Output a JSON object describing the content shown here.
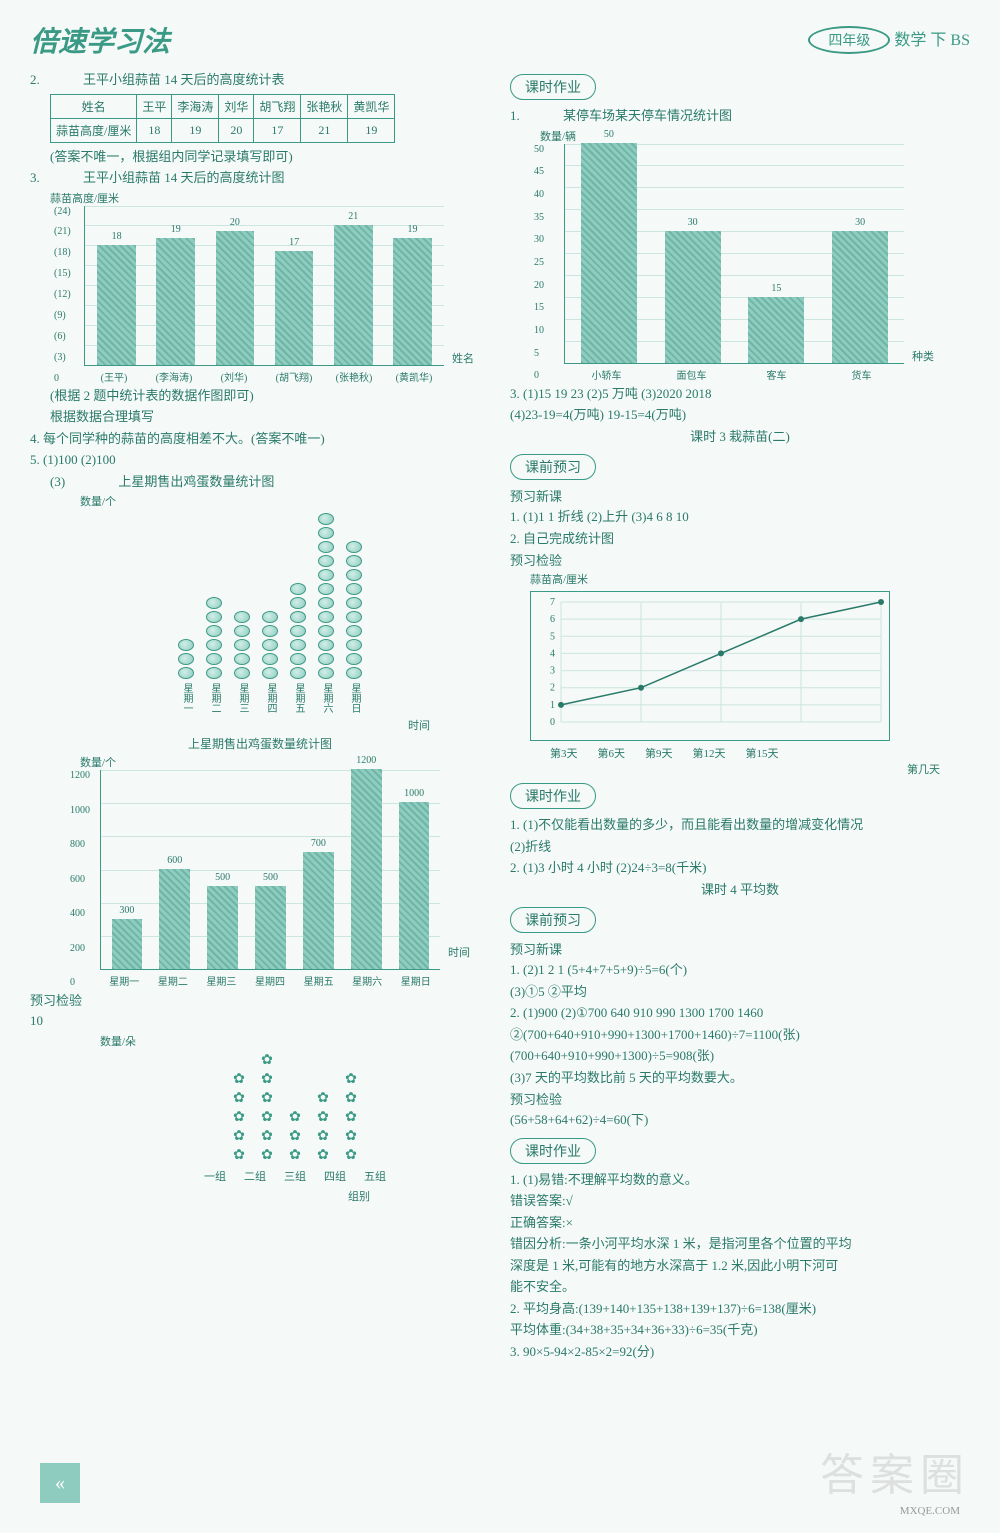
{
  "header": {
    "logo_text": "倍速学习法",
    "grade_label": "四年级",
    "subject_label": "数学 下 BS"
  },
  "left": {
    "q2": {
      "num": "2.",
      "title": "王平小组蒜苗 14 天后的高度统计表",
      "row1_hdr": "姓名",
      "names": [
        "王平",
        "李海涛",
        "刘华",
        "胡飞翔",
        "张艳秋",
        "黄凯华"
      ],
      "row2_hdr": "蒜苗高度/厘米",
      "heights": [
        "18",
        "19",
        "20",
        "17",
        "21",
        "19"
      ],
      "note": "(答案不唯一，根据组内同学记录填写即可)"
    },
    "q3": {
      "num": "3.",
      "title": "王平小组蒜苗 14 天后的高度统计图",
      "ylabel": "蒜苗高度/厘米",
      "bars_chart": {
        "categories": [
          "(王平)",
          "(李海涛)",
          "(刘华)",
          "(胡飞翔)",
          "(张艳秋)",
          "(黄凯华)"
        ],
        "values": [
          18,
          19,
          20,
          17,
          21,
          19
        ],
        "value_labels": [
          "18",
          "19",
          "20",
          "17",
          "21",
          "19"
        ],
        "yticks": [
          "(24)",
          "(21)",
          "(18)",
          "(15)",
          "(12)",
          "(9)",
          "(6)",
          "(3)",
          "0"
        ],
        "ymax": 24,
        "bar_color": "#8fccc0",
        "xlabel_right": "姓名"
      },
      "note1": "(根据 2 题中统计表的数据作图即可)",
      "note2": "根据数据合理填写"
    },
    "q4": "4. 每个同学种的蒜苗的高度相差不大。(答案不唯一)",
    "q5": {
      "head": "5. (1)100  (2)100",
      "sub3_label": "(3)",
      "picto_title": "上星期售出鸡蛋数量统计图",
      "picto_ylabel": "数量/个",
      "picto_days": [
        "星期一",
        "星期二",
        "星期三",
        "星期四",
        "星期五",
        "星期六",
        "星期日"
      ],
      "picto_counts": [
        3,
        6,
        5,
        5,
        7,
        12,
        10
      ],
      "picto_xlabel_right": "时间",
      "bar2_title": "上星期售出鸡蛋数量统计图",
      "bar2_ylabel": "数量/个",
      "bar2": {
        "categories": [
          "星期一",
          "星期二",
          "星期三",
          "星期四",
          "星期五",
          "星期六",
          "星期日"
        ],
        "values": [
          300,
          600,
          500,
          500,
          700,
          1200,
          1000
        ],
        "value_labels": [
          "300",
          "600",
          "500",
          "500",
          "700",
          "1200",
          "1000"
        ],
        "yticks": [
          "1200",
          "1000",
          "800",
          "600",
          "400",
          "200",
          "0"
        ],
        "ymax": 1200,
        "bar_color": "#8fccc0",
        "xlabel_right": "时间"
      }
    },
    "yx_label": "预习检验",
    "yx_val": "10",
    "flower_ylabel": "数量/朵",
    "flower_groups": [
      "一组",
      "二组",
      "三组",
      "四组",
      "五组"
    ],
    "flower_counts": [
      5,
      6,
      3,
      4,
      5
    ],
    "flower_xlabel_right": "组别"
  },
  "right": {
    "sec_kszy": "课时作业",
    "q1": {
      "num": "1.",
      "title": "某停车场某天停车情况统计图",
      "ylabel": "数量/辆",
      "chart": {
        "categories": [
          "小轿车",
          "面包车",
          "客车",
          "货车"
        ],
        "values": [
          50,
          30,
          15,
          30
        ],
        "yticks": [
          "50",
          "45",
          "40",
          "35",
          "30",
          "25",
          "20",
          "15",
          "10",
          "5",
          "0"
        ],
        "ymax": 50,
        "bar_color": "#8fccc0",
        "xlabel_right": "种类"
      }
    },
    "q3_lines": [
      "3. (1)15  19  23   (2)5 万吨   (3)2020   2018",
      "   (4)23-19=4(万吨)   19-15=4(万吨)"
    ],
    "lesson3": "课时 3   栽蒜苗(二)",
    "sec_kqyx": "课前预习",
    "yx_new": "预习新课",
    "yx_lines": [
      "1. (1)1  1  折线   (2)上升   (3)4  6  8  10",
      "2. 自己完成统计图"
    ],
    "yx_jy": "预习检验",
    "line_ylabel": "蒜苗高/厘米",
    "line_chart": {
      "x_labels": [
        "第3天",
        "第6天",
        "第9天",
        "第12天",
        "第15天"
      ],
      "y_ticks": [
        "7",
        "6",
        "5",
        "4",
        "3",
        "2",
        "1",
        "0"
      ],
      "points": [
        [
          0,
          1
        ],
        [
          1,
          2
        ],
        [
          2,
          4
        ],
        [
          3,
          6
        ],
        [
          4,
          7
        ]
      ],
      "ymax": 7,
      "line_color": "#2a7a6a",
      "xlabel_right": "第几天"
    },
    "sec_kszy2": "课时作业",
    "kszy2_lines": [
      "1. (1)不仅能看出数量的多少，而且能看出数量的增减变化情况",
      "   (2)折线",
      "2. (1)3 小时   4 小时   (2)24÷3=8(千米)"
    ],
    "lesson4": "课时 4   平均数",
    "sec_kqyx2": "课前预习",
    "yx_new2": "预习新课",
    "kqyx2_lines": [
      "1. (2)1  2  1   (5+4+7+5+9)÷5=6(个)",
      "   (3)①5  ②平均",
      "2. (1)900   (2)①700  640  910  990  1300  1700  1460",
      "   ②(700+640+910+990+1300+1700+1460)÷7=1100(张)",
      "   (700+640+910+990+1300)÷5=908(张)",
      "   (3)7 天的平均数比前 5 天的平均数要大。"
    ],
    "yx_jy2": "预习检验",
    "yx_jy2_line": "(56+58+64+62)÷4=60(下)",
    "sec_kszy3": "课时作业",
    "kszy3_lines": [
      "1. (1)易错:不理解平均数的意义。",
      "   错误答案:√",
      "   正确答案:×",
      "   错因分析:一条小河平均水深 1 米，是指河里各个位置的平均",
      "   深度是 1 米,可能有的地方水深高于 1.2 米,因此小明下河可",
      "   能不安全。",
      "2. 平均身高:(139+140+135+138+139+137)÷6=138(厘米)",
      "   平均体重:(34+38+35+34+36+33)÷6=35(千克)",
      "3. 90×5-94×2-85×2=92(分)"
    ]
  },
  "watermark": "答案圈",
  "domain": "MXQE.COM"
}
